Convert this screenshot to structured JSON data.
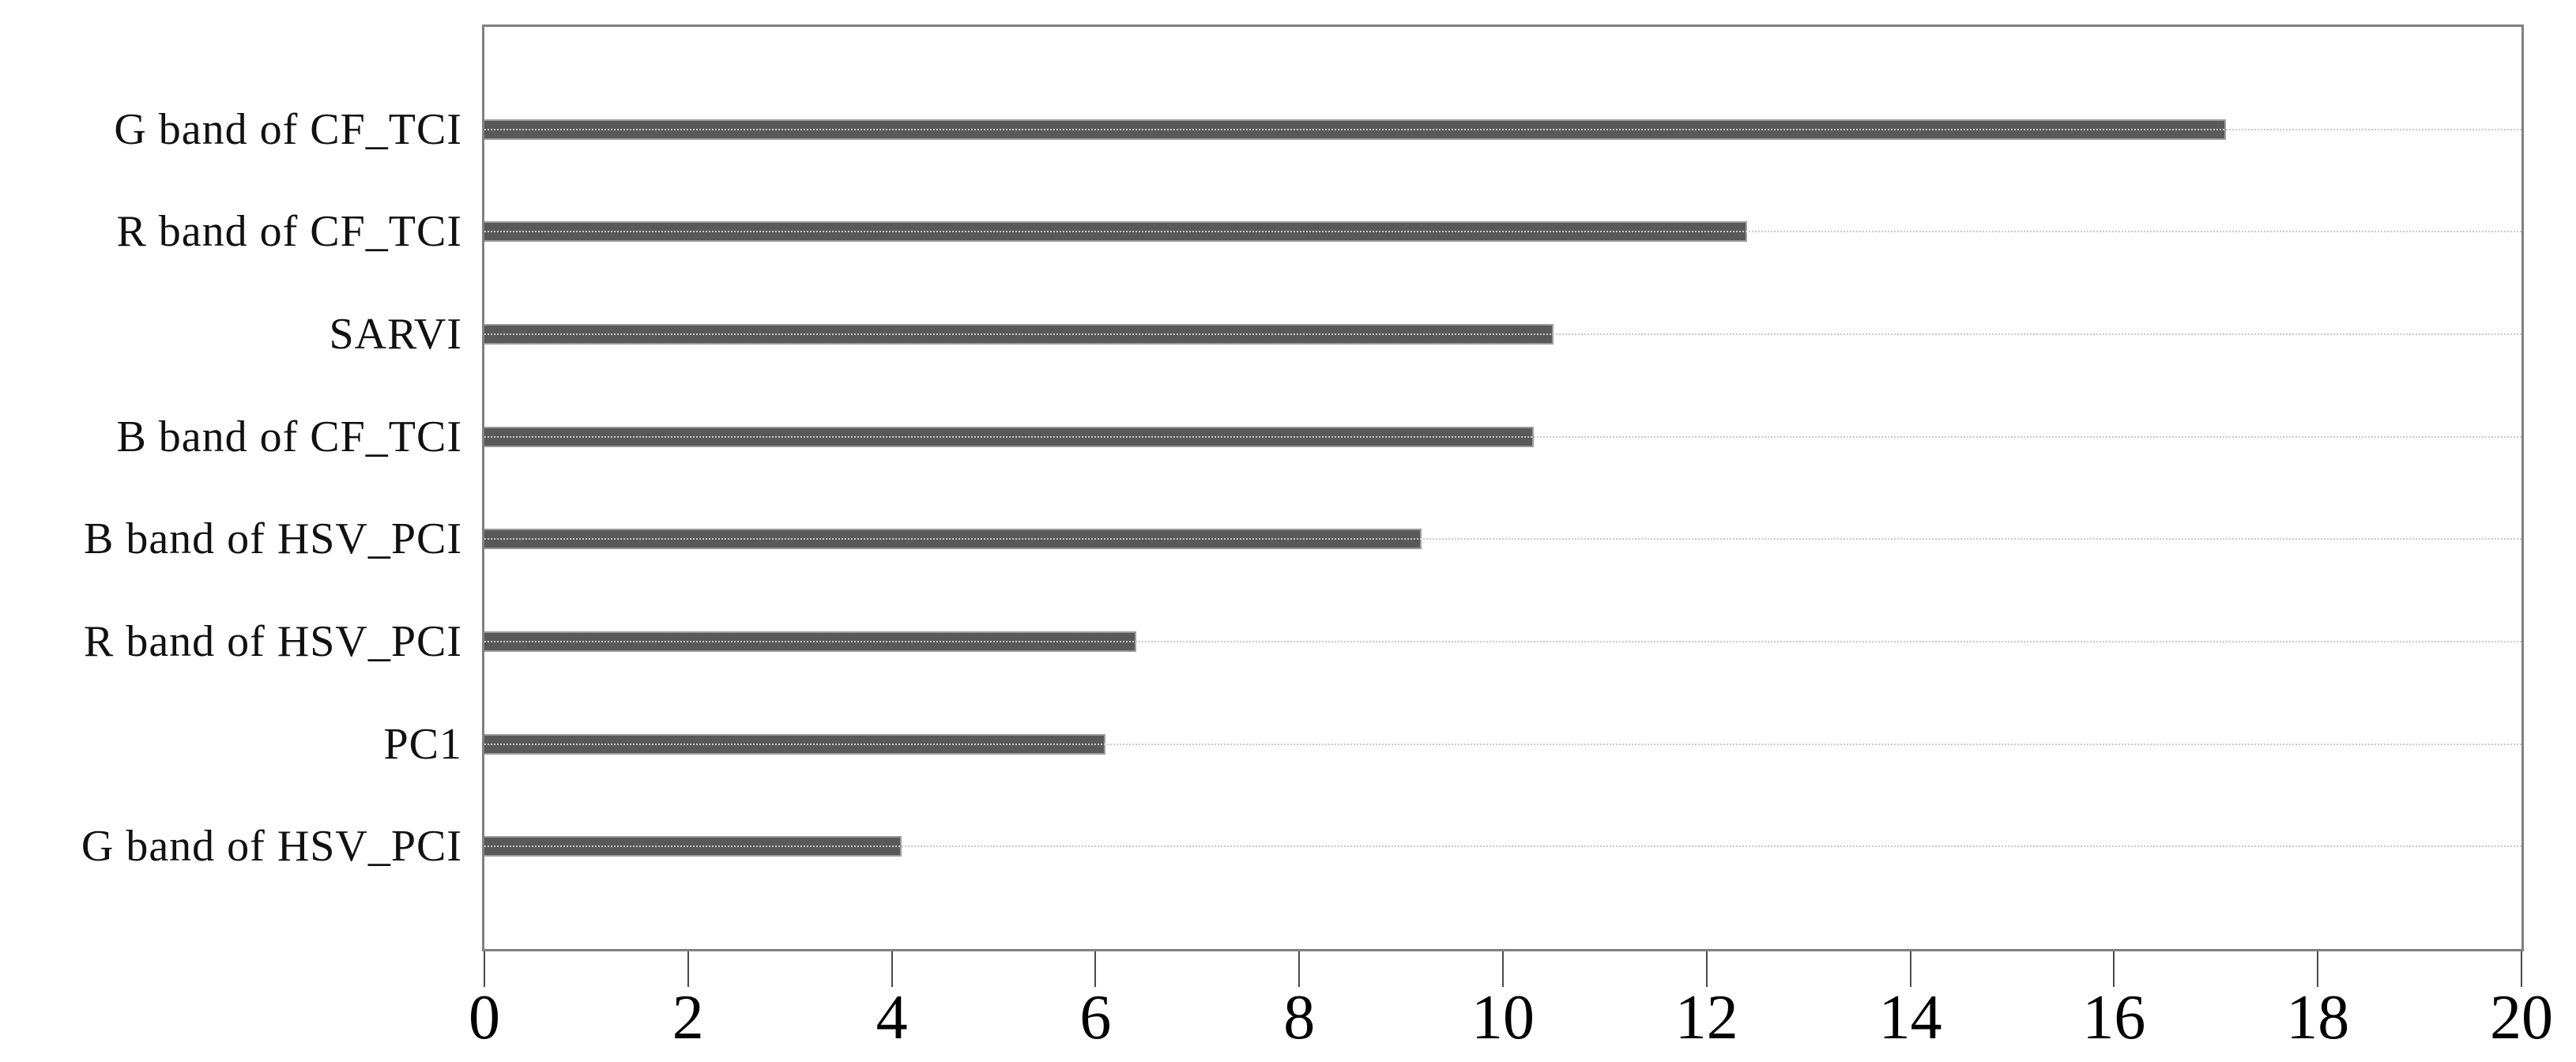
{
  "chart_data": {
    "type": "bar",
    "orientation": "horizontal",
    "title": "",
    "xlabel": "",
    "ylabel": "",
    "categories": [
      "G band of CF_TCI",
      "R band of CF_TCI",
      "SARVI",
      "B band of CF_TCI",
      "B band of HSV_PCI",
      "R band of HSV_PCI",
      "PC1",
      "G band of HSV_PCI"
    ],
    "values": [
      17.1,
      12.4,
      10.5,
      10.3,
      9.2,
      6.4,
      6.1,
      4.1
    ],
    "xlim": [
      0,
      20
    ],
    "xticks": [
      0,
      2,
      4,
      6,
      8,
      10,
      12,
      14,
      16,
      18,
      20
    ],
    "grid": "dotted horizontal leader line at each category row, spanning full plot width",
    "legend_position": "none",
    "colors": {
      "bar_fill": "#595959",
      "bar_edge": "#9c9c9c",
      "gridline": "#c9c9c9",
      "plot_frame": "#808080",
      "tick_mark": "#4a4a4a",
      "text": "#111111",
      "background": "#ffffff"
    }
  }
}
